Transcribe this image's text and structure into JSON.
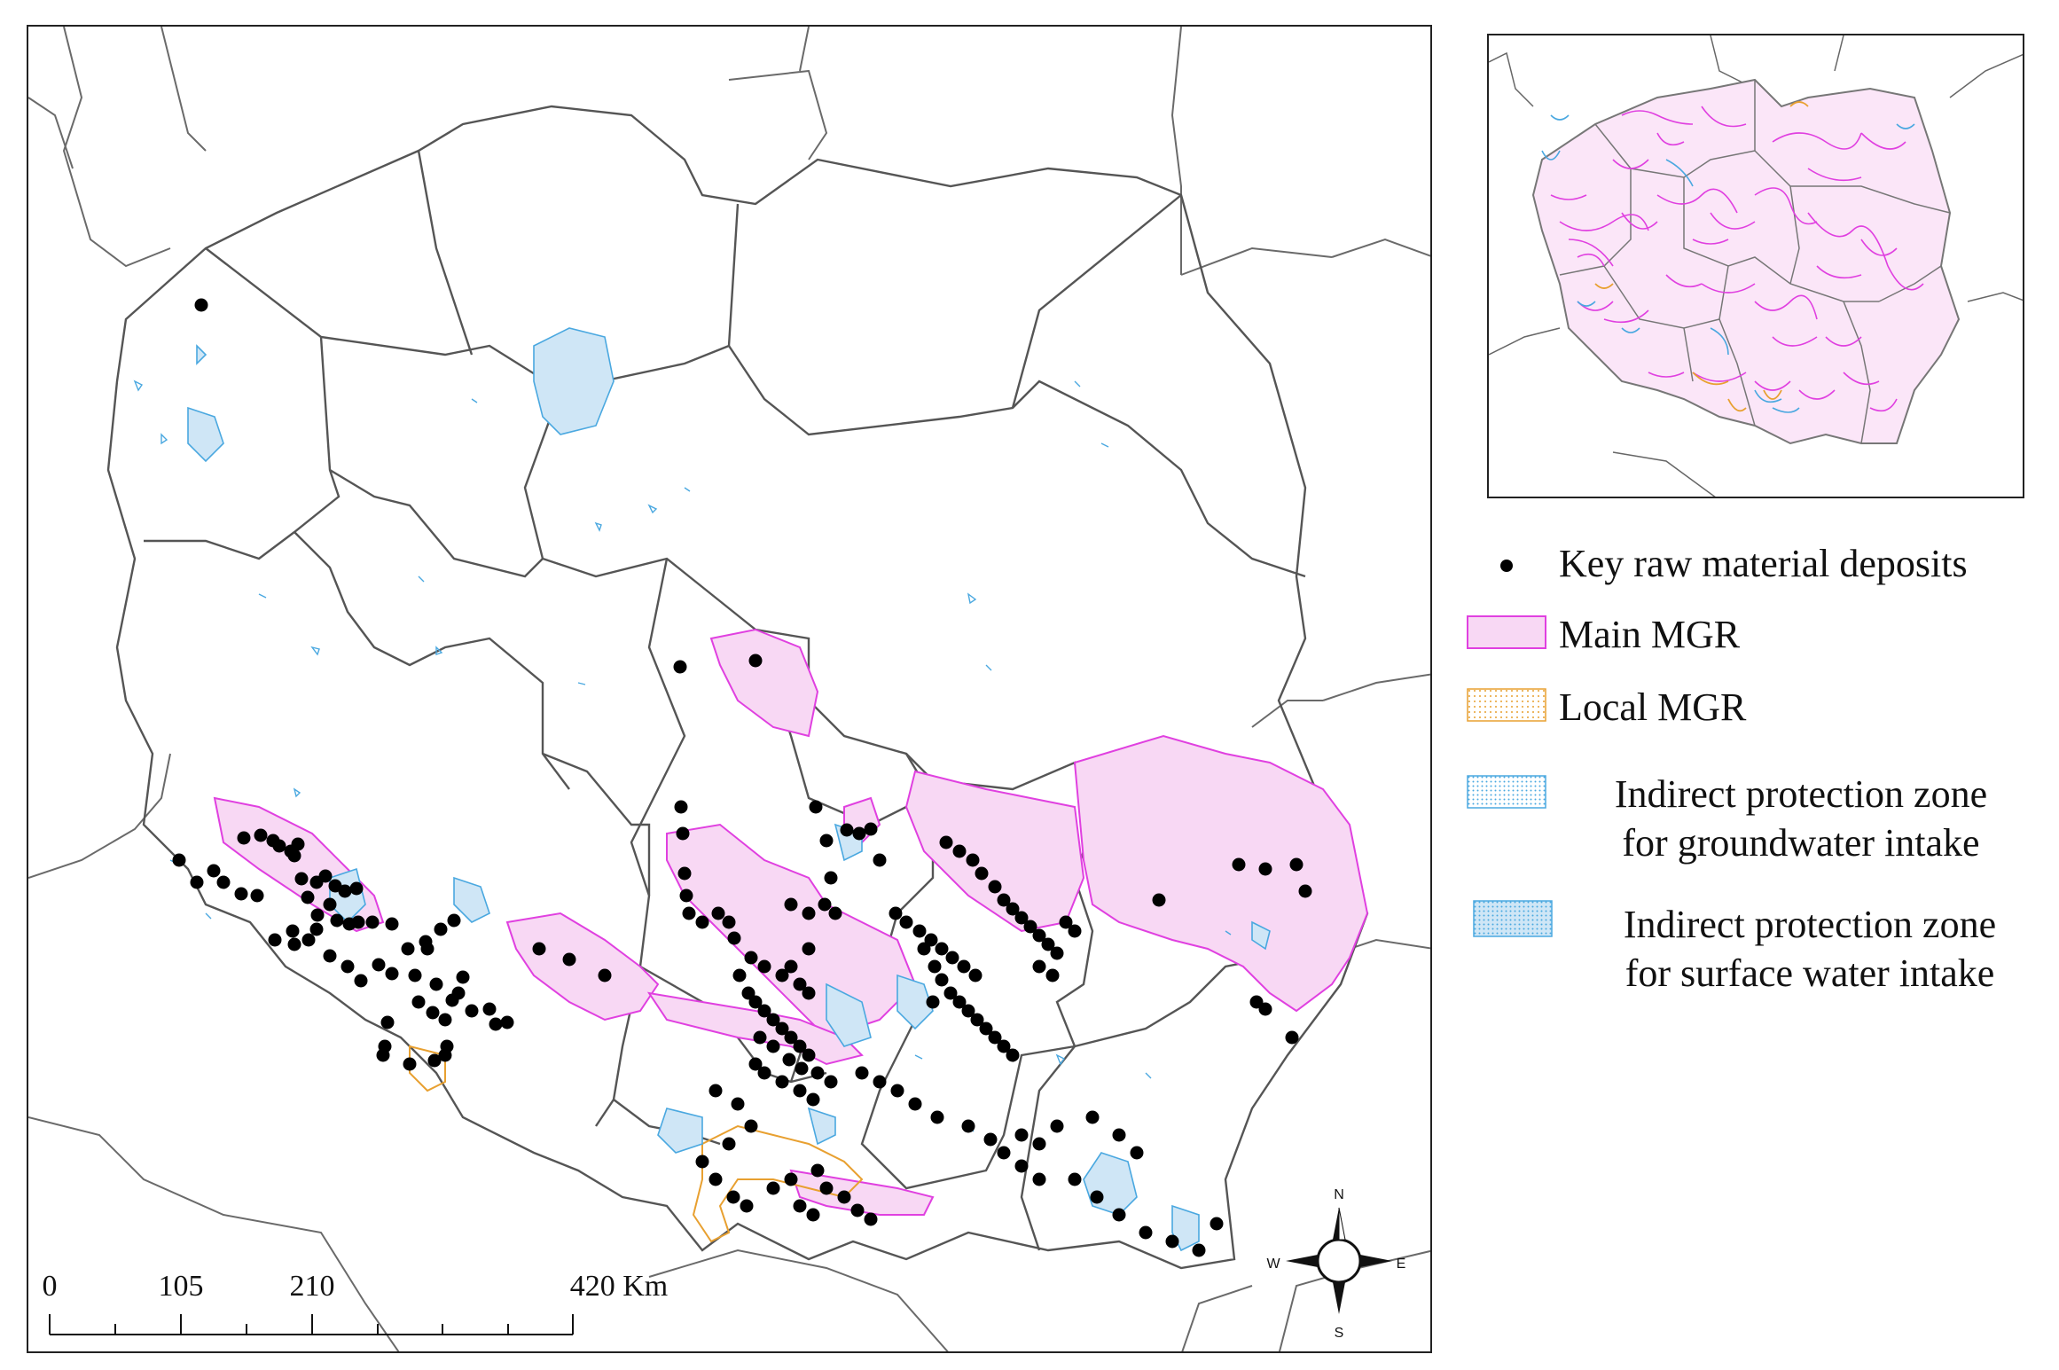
{
  "legend": {
    "deposits": "Key raw material deposits",
    "main_mgr": "Main MGR",
    "local_mgr": "Local MGR",
    "groundwater_zone": "Indirect protection zone\nfor groundwater intake",
    "surface_zone": "Indirect protection zone\nfor surface water intake"
  },
  "scale_bar": {
    "labels": [
      "0",
      "105",
      "210",
      "420 Km"
    ],
    "values_km": [
      0,
      105,
      210,
      420
    ]
  },
  "compass": {
    "north": "N",
    "south": "S",
    "east": "E",
    "west": "W"
  },
  "colors": {
    "main_mgr": "#e040e0",
    "main_mgr_fill": "#f8d8f4",
    "local_mgr": "#e8a030",
    "water_zone": "#4aa8e0",
    "water_zone_fill": "#cfe6f6",
    "border": "#555555",
    "deposit": "#000000"
  }
}
